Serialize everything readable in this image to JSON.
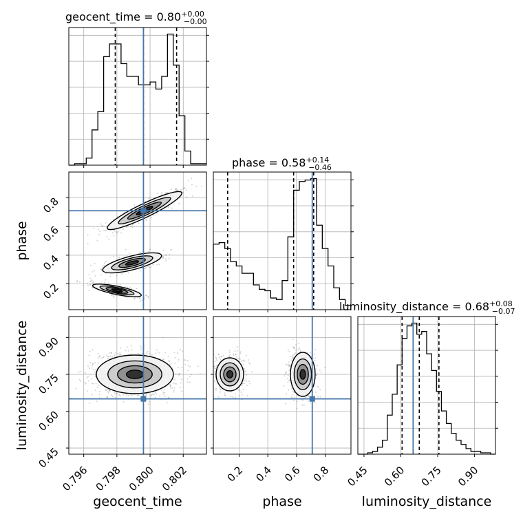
{
  "chart_data": {
    "type": "corner",
    "parameters": [
      "geocent_time",
      "phase",
      "luminosity_distance"
    ],
    "truths": {
      "geocent_time": 0.7996,
      "phase": 0.71,
      "luminosity_distance": 0.65
    },
    "titles": [
      {
        "param": "geocent_time",
        "text": "geocent_time = 0.80",
        "sup": "+0.00",
        "sub": "−0.00"
      },
      {
        "param": "phase",
        "text": "phase = 0.58",
        "sup": "+0.14",
        "sub": "−0.46"
      },
      {
        "param": "luminosity_distance",
        "text": "luminosity_distance = 0.68",
        "sup": "+0.08",
        "sub": "−0.07"
      }
    ],
    "axes": {
      "geocent_time": {
        "range": [
          0.7951,
          0.8034
        ],
        "ticks": [
          0.796,
          0.798,
          0.8,
          0.802
        ],
        "tick_labels": [
          "0.796",
          "0.798",
          "0.800",
          "0.802"
        ],
        "label": "geocent_time"
      },
      "phase": {
        "range": [
          0.02,
          0.98
        ],
        "ticks": [
          0.2,
          0.4,
          0.6,
          0.8
        ],
        "tick_labels": [
          "0.2",
          "0.4",
          "0.6",
          "0.8"
        ],
        "label": "phase"
      },
      "luminosity_distance": {
        "range": [
          0.425,
          0.985
        ],
        "ticks": [
          0.45,
          0.6,
          0.75,
          0.9
        ],
        "tick_labels": [
          "0.45",
          "0.60",
          "0.75",
          "0.90"
        ],
        "label": "luminosity_distance"
      }
    },
    "histograms": {
      "geocent_time": {
        "quantiles": [
          0.7979,
          0.7996,
          0.8016
        ],
        "bins": [
          0.7951,
          0.79545,
          0.7958,
          0.79615,
          0.7965,
          0.79685,
          0.7972,
          0.79755,
          0.7979,
          0.79825,
          0.7986,
          0.79895,
          0.7993,
          0.79965,
          0.8,
          0.80035,
          0.8007,
          0.80105,
          0.8014,
          0.80175,
          0.8021,
          0.80245,
          0.8028,
          0.80315,
          0.8034
        ],
        "counts": [
          0,
          1,
          1,
          5,
          25,
          38,
          77,
          86,
          86,
          72,
          63,
          63,
          57,
          57,
          59,
          54,
          63,
          93,
          71,
          35,
          10,
          1,
          1,
          1
        ]
      },
      "phase": {
        "quantiles": [
          0.12,
          0.58,
          0.72
        ],
        "bins": [
          0.02,
          0.06,
          0.1,
          0.14,
          0.18,
          0.22,
          0.26,
          0.3,
          0.34,
          0.38,
          0.42,
          0.46,
          0.5,
          0.54,
          0.58,
          0.62,
          0.66,
          0.7,
          0.74,
          0.78,
          0.82,
          0.86,
          0.9,
          0.94,
          0.98
        ],
        "counts": [
          45,
          46,
          42,
          33,
          30,
          25,
          25,
          17,
          14,
          13,
          8,
          7,
          20,
          50,
          82,
          88,
          89,
          90,
          58,
          42,
          30,
          15,
          7,
          3
        ]
      },
      "luminosity_distance": {
        "quantiles": [
          0.605,
          0.675,
          0.755
        ],
        "bins": [
          0.425,
          0.445,
          0.465,
          0.485,
          0.505,
          0.525,
          0.545,
          0.565,
          0.585,
          0.605,
          0.625,
          0.645,
          0.665,
          0.685,
          0.705,
          0.725,
          0.745,
          0.765,
          0.785,
          0.805,
          0.825,
          0.845,
          0.865,
          0.885,
          0.905,
          0.925,
          0.945,
          0.965,
          0.985
        ],
        "counts": [
          0,
          0,
          1,
          2,
          5,
          10,
          28,
          43,
          64,
          83,
          92,
          94,
          86,
          88,
          72,
          60,
          45,
          31,
          22,
          15,
          10,
          7,
          4,
          2,
          2,
          1,
          1,
          0
        ]
      }
    },
    "colors": {
      "truth": "#4477aa",
      "hist": "#000000",
      "grid": "#b0b0b0",
      "density": "#000000"
    }
  }
}
